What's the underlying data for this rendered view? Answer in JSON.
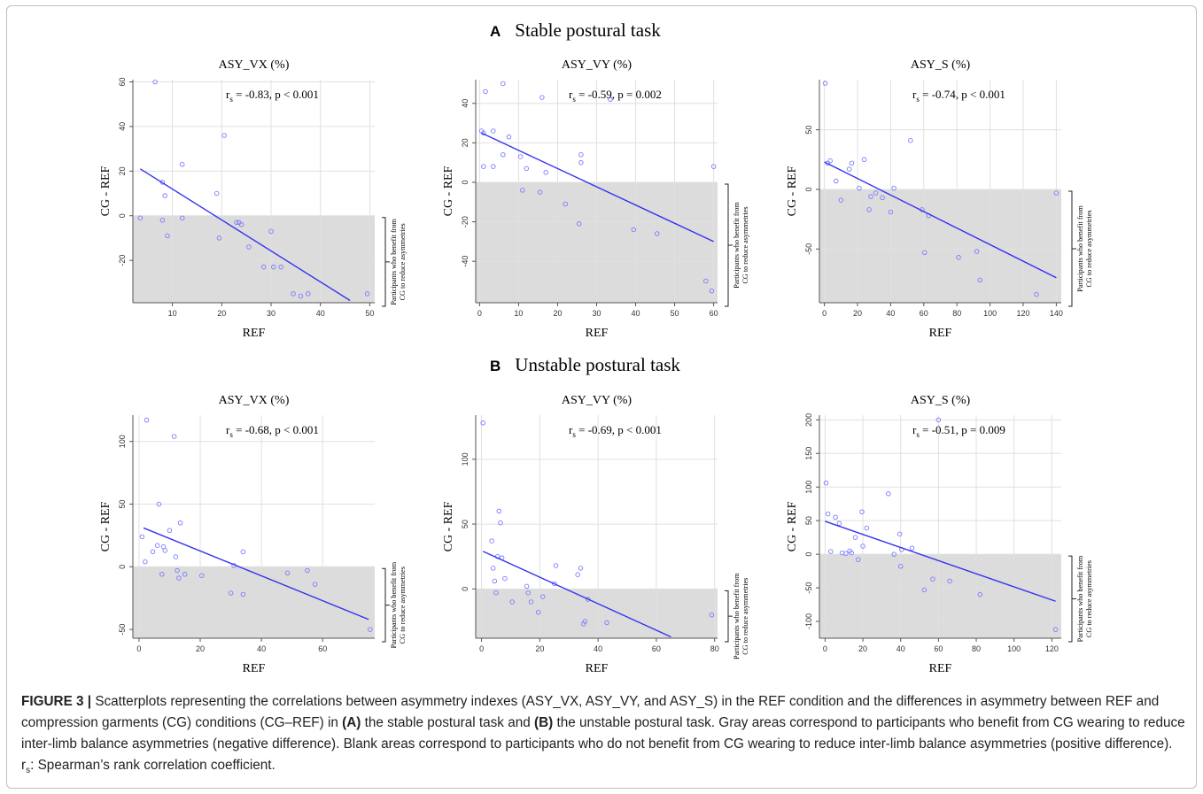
{
  "sections": [
    {
      "letter": "A",
      "title": "Stable postural task"
    },
    {
      "letter": "B",
      "title": "Unstable postural task"
    }
  ],
  "shared": {
    "ylabel": "CG - REF",
    "xlabel": "REF",
    "bracket_label_line1": "Participants who benefit from",
    "bracket_label_line2": "CG to reduce asymmetries"
  },
  "caption": {
    "lead": "FIGURE 3 |",
    "part1": " Scatterplots representing the correlations between asymmetry indexes (ASY_VX, ASY_VY, and ASY_S) in the REF condition and the differences in asymmetry between REF and compression garments (CG) conditions (CG–REF) in ",
    "bold_a": "(A)",
    "part2": " the stable postural task and ",
    "bold_b": "(B)",
    "part3": " the unstable postural task. Gray areas correspond to participants who benefit from CG wearing to reduce inter-limb balance asymmetries (negative difference). Blank areas correspond to participants who do not benefit from CG wearing to reduce inter-limb balance asymmetries (positive difference). r",
    "sub": "s",
    "part4": ": Spearman’s rank correlation coefficient."
  },
  "colors": {
    "points": "#7b7bff",
    "line": "#3333ee",
    "shade": "#dcdcdc",
    "grid": "#e0e0e0",
    "axis": "#555555"
  },
  "chart_data": [
    {
      "type": "scatter",
      "title": "ASY_VX (%)",
      "xlabel": "REF",
      "ylabel": "CG - REF",
      "annotation": {
        "pre": "r",
        "sub": "s",
        "post": " = -0.83, p < 0.001"
      },
      "xlim": [
        2,
        51
      ],
      "ylim": [
        -39,
        61
      ],
      "xticks": [
        10,
        20,
        30,
        40,
        50
      ],
      "xtick_labels": [
        "10",
        "20",
        "30",
        "40",
        "50"
      ],
      "yticks": [
        -20,
        0,
        20,
        40,
        60
      ],
      "ytick_labels": [
        "-20",
        "0",
        "20",
        "40",
        "60"
      ],
      "grid": true,
      "shaded_below_zero": true,
      "fit_line": {
        "x": [
          3.5,
          46
        ],
        "y": [
          21,
          -38
        ]
      },
      "x": [
        3.5,
        6.5,
        8,
        8,
        8.5,
        9,
        12,
        12,
        19,
        19.5,
        20.5,
        23,
        23.5,
        24,
        25.5,
        28.5,
        30,
        30.5,
        32,
        34.5,
        36,
        37.5,
        49.5
      ],
      "y": [
        -1,
        60,
        15,
        -2,
        9,
        -9,
        23,
        -1,
        10,
        -10,
        36,
        -3,
        -3,
        -4,
        -14,
        -23,
        -7,
        -23,
        -23,
        -35,
        -36,
        -35,
        -35
      ]
    },
    {
      "type": "scatter",
      "title": "ASY_VY (%)",
      "xlabel": "REF",
      "ylabel": "CG - REF",
      "annotation": {
        "pre": "r",
        "sub": "s",
        "post": " = -0.59, p = 0.002"
      },
      "xlim": [
        -1,
        61
      ],
      "ylim": [
        -61,
        52
      ],
      "xticks": [
        0,
        10,
        20,
        30,
        40,
        50,
        60
      ],
      "xtick_labels": [
        "0",
        "10",
        "20",
        "30",
        "40",
        "50",
        "60"
      ],
      "yticks": [
        -40,
        -20,
        0,
        20,
        40
      ],
      "ytick_labels": [
        "-40",
        "-20",
        "0",
        "20",
        "40"
      ],
      "grid": true,
      "shaded_below_zero": true,
      "fit_line": {
        "x": [
          0.5,
          60
        ],
        "y": [
          25,
          -30
        ]
      },
      "x": [
        0.5,
        1,
        1,
        1.5,
        3.5,
        3.5,
        6,
        6,
        7.5,
        10.5,
        11,
        12,
        15.5,
        16,
        17,
        22,
        25.5,
        26,
        26,
        33.5,
        39.5,
        45.5,
        58,
        59.5,
        60
      ],
      "y": [
        26,
        25,
        8,
        46,
        26,
        8,
        50,
        14,
        23,
        13,
        -4,
        7,
        -5,
        43,
        5,
        -11,
        -21,
        14,
        10,
        42,
        -24,
        -26,
        -50,
        -55,
        8
      ]
    },
    {
      "type": "scatter",
      "title": "ASY_S (%)",
      "xlabel": "REF",
      "ylabel": "CG - REF",
      "annotation": {
        "pre": "r",
        "sub": "s",
        "post": " = -0.74, p < 0.001"
      },
      "xlim": [
        -3,
        143
      ],
      "ylim": [
        -95,
        92
      ],
      "xticks": [
        0,
        20,
        40,
        60,
        80,
        100,
        120,
        140
      ],
      "xtick_labels": [
        "0",
        "20",
        "40",
        "60",
        "80",
        "100",
        "120",
        "140"
      ],
      "yticks": [
        -50,
        0,
        50
      ],
      "ytick_labels": [
        "-50",
        "0",
        "50"
      ],
      "grid": true,
      "shaded_below_zero": true,
      "fit_line": {
        "x": [
          0,
          140
        ],
        "y": [
          23,
          -74
        ]
      },
      "x": [
        0.5,
        2,
        3.5,
        7,
        10,
        15,
        16.5,
        21,
        24,
        27,
        28,
        31,
        35,
        40,
        42,
        59,
        60.5,
        63,
        52,
        81,
        92,
        94,
        128,
        140
      ],
      "y": [
        89,
        22,
        24,
        7,
        -9,
        17,
        22,
        1,
        25,
        -17,
        -6,
        -3,
        -7,
        -19,
        1,
        -17,
        -53,
        -22,
        41,
        -57,
        -52,
        -76,
        -88,
        -3
      ]
    },
    {
      "type": "scatter",
      "title": "ASY_VX (%)",
      "xlabel": "REF",
      "ylabel": "CG - REF",
      "annotation": {
        "pre": "r",
        "sub": "s",
        "post": " = -0.68, p < 0.001"
      },
      "xlim": [
        -2,
        77
      ],
      "ylim": [
        -57,
        121
      ],
      "xticks": [
        0,
        20,
        40,
        60
      ],
      "xtick_labels": [
        "0",
        "20",
        "40",
        "60"
      ],
      "yticks": [
        -50,
        0,
        50,
        100
      ],
      "ytick_labels": [
        "-50",
        "0",
        "50",
        "100"
      ],
      "grid": true,
      "shaded_below_zero": true,
      "fit_line": {
        "x": [
          1.5,
          75
        ],
        "y": [
          31,
          -42
        ]
      },
      "x": [
        1,
        2,
        2.5,
        4.5,
        6,
        6.5,
        7.5,
        8,
        8.5,
        10,
        11.5,
        12,
        12.5,
        13,
        13.5,
        15,
        20.5,
        30,
        31,
        34,
        34,
        48.5,
        55,
        57.5,
        75.5
      ],
      "y": [
        24,
        4,
        117,
        12,
        17,
        50,
        -6,
        16,
        13,
        29,
        104,
        8,
        -3,
        -9,
        35,
        -6,
        -7,
        -21,
        1,
        12,
        -22,
        -5,
        -3,
        -14,
        -50
      ]
    },
    {
      "type": "scatter",
      "title": "ASY_VY (%)",
      "xlabel": "REF",
      "ylabel": "CG - REF",
      "annotation": {
        "pre": "r",
        "sub": "s",
        "post": " = -0.69, p < 0.001"
      },
      "xlim": [
        -2,
        81
      ],
      "ylim": [
        -38,
        134
      ],
      "xticks": [
        0,
        20,
        40,
        60,
        80
      ],
      "xtick_labels": [
        "0",
        "20",
        "40",
        "60",
        "80"
      ],
      "yticks": [
        0,
        50,
        100
      ],
      "ytick_labels": [
        "0",
        "50",
        "100"
      ],
      "grid": true,
      "shaded_below_zero": true,
      "fit_line": {
        "x": [
          0.5,
          65
        ],
        "y": [
          29,
          -37
        ]
      },
      "x": [
        0.5,
        3.5,
        4,
        4.5,
        5,
        5.5,
        6,
        6.5,
        7,
        8,
        10.5,
        15.5,
        16,
        17,
        19.5,
        21,
        25,
        25.5,
        33,
        34,
        35,
        35.5,
        36.5,
        43,
        79
      ],
      "y": [
        128,
        37,
        16,
        6,
        -3,
        25,
        60,
        51,
        24,
        8,
        -10,
        2,
        -3,
        -10,
        -18,
        -6,
        4,
        18,
        11,
        16,
        -27,
        -25,
        -8,
        -26,
        -20
      ]
    },
    {
      "type": "scatter",
      "title": "ASY_S (%)",
      "xlabel": "REF",
      "ylabel": "CG - REF",
      "annotation": {
        "pre": "r",
        "sub": "s",
        "post": " = -0.51, p = 0.009"
      },
      "xlim": [
        -3,
        125
      ],
      "ylim": [
        -125,
        207
      ],
      "xticks": [
        0,
        20,
        40,
        60,
        80,
        100,
        120
      ],
      "xtick_labels": [
        "0",
        "20",
        "40",
        "60",
        "80",
        "100",
        "120"
      ],
      "yticks": [
        -100,
        -50,
        0,
        50,
        100,
        150,
        200
      ],
      "ytick_labels": [
        "-100",
        "-50",
        "0",
        "50",
        "100",
        "150",
        "200"
      ],
      "grid": true,
      "shaded_below_zero": true,
      "fit_line": {
        "x": [
          0,
          122
        ],
        "y": [
          49,
          -70
        ]
      },
      "x": [
        0.5,
        1.5,
        3,
        5.5,
        7.5,
        9,
        11,
        13,
        14,
        16,
        17.5,
        19.5,
        20,
        22,
        33.5,
        36.5,
        39.5,
        40,
        40.5,
        46,
        52.5,
        57,
        60,
        66,
        82,
        122
      ],
      "y": [
        106,
        60,
        4,
        55,
        46,
        2,
        1,
        5,
        2,
        25,
        -8,
        63,
        12,
        39,
        90,
        0,
        30,
        -18,
        7,
        9,
        -53,
        -37,
        200,
        -40,
        -60,
        -112
      ]
    }
  ]
}
